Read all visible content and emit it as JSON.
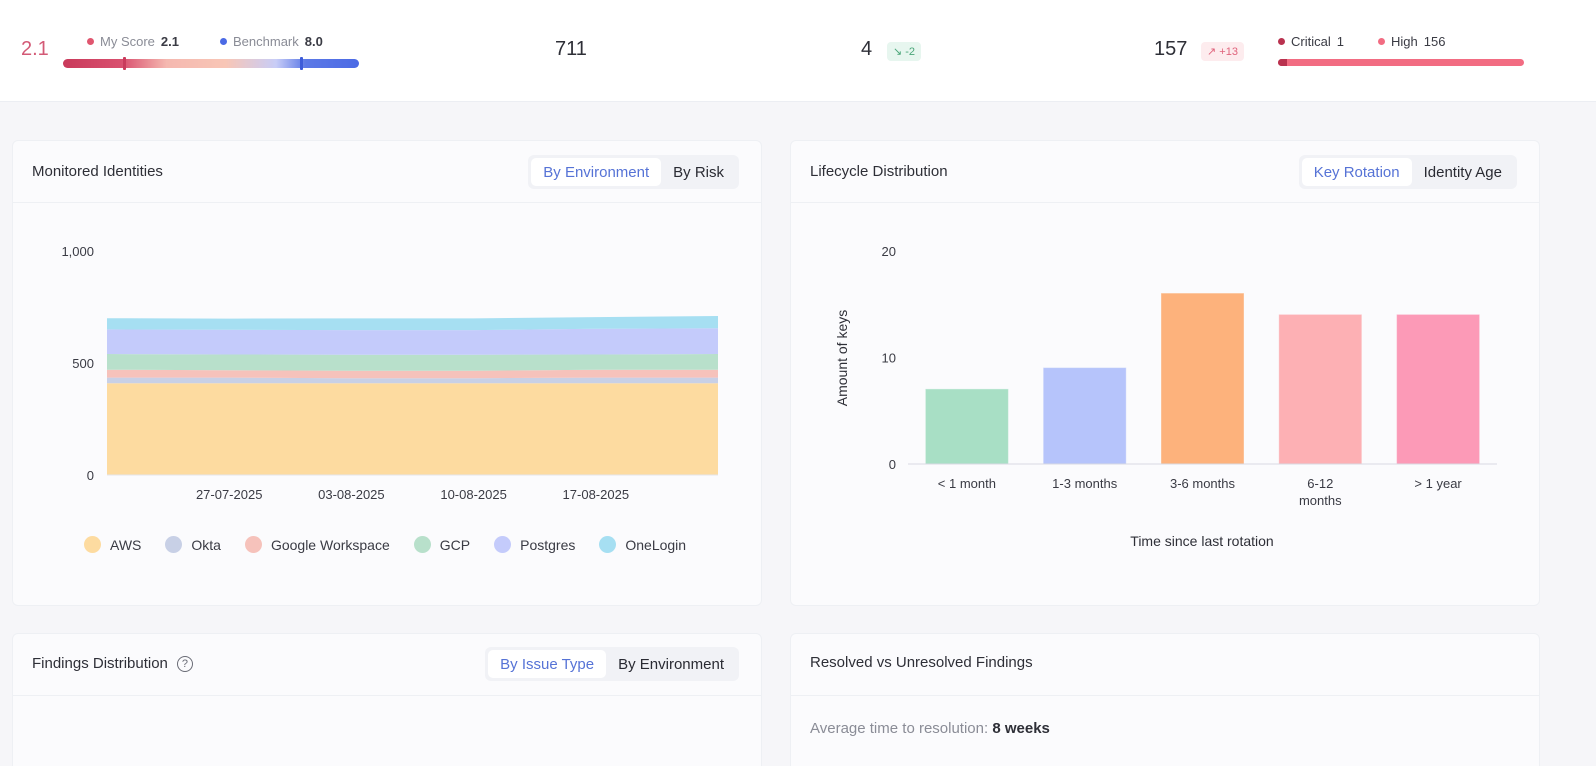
{
  "header": {
    "score": "2.1",
    "my_score_label": "My Score",
    "my_score_value": "2.1",
    "benchmark_label": "Benchmark",
    "benchmark_value": "8.0",
    "identities_count": "711",
    "metric_b_value": "4",
    "metric_b_trend": "↘ -2",
    "findings_count": "157",
    "findings_trend": "↗ +13",
    "critical_label": "Critical",
    "critical_value": "1",
    "high_label": "High",
    "high_value": "156",
    "colors": {
      "critical": "#b9324f",
      "high": "#f26c82",
      "score": "#d35a76",
      "benchmark": "#4b6ae5"
    }
  },
  "monitored": {
    "title": "Monitored Identities",
    "tab_environment": "By Environment",
    "tab_risk": "By Risk",
    "active_tab": "By Environment"
  },
  "lifecycle": {
    "title": "Lifecycle Distribution",
    "tab_key_rotation": "Key Rotation",
    "tab_identity_age": "Identity Age",
    "active_tab": "Key Rotation"
  },
  "findings": {
    "title": "Findings Distribution",
    "help_icon": "question-circle-icon",
    "tab_issue_type": "By Issue Type",
    "tab_environment": "By Environment",
    "active_tab": "By Issue Type"
  },
  "resolved": {
    "title": "Resolved vs Unresolved Findings",
    "avg_label": "Average time to resolution:",
    "avg_value": "8 weeks"
  },
  "chart_data": [
    {
      "type": "area",
      "stacked": true,
      "x": [
        "20-07-2025",
        "27-07-2025",
        "03-08-2025",
        "10-08-2025",
        "17-08-2025",
        "21-08-2025"
      ],
      "x_tick_labels": [
        "27-07-2025",
        "03-08-2025",
        "10-08-2025",
        "17-08-2025"
      ],
      "ylim": [
        0,
        1000
      ],
      "y_ticks": [
        "0",
        "500",
        "1,000"
      ],
      "grid": false,
      "legend_position": "bottom",
      "series": [
        {
          "name": "AWS",
          "color": "#fddba0",
          "values": [
            410,
            410,
            410,
            410,
            410,
            410
          ]
        },
        {
          "name": "Okta",
          "color": "#c8d0e6",
          "values": [
            25,
            25,
            22,
            22,
            25,
            25
          ]
        },
        {
          "name": "Google Workspace",
          "color": "#f6c2bb",
          "values": [
            35,
            33,
            33,
            33,
            35,
            35
          ]
        },
        {
          "name": "GCP",
          "color": "#b8e0cb",
          "values": [
            70,
            70,
            72,
            72,
            68,
            70
          ]
        },
        {
          "name": "Postgres",
          "color": "#c4cbfb",
          "values": [
            110,
            110,
            110,
            110,
            115,
            115
          ]
        },
        {
          "name": "OneLogin",
          "color": "#a6dff2",
          "values": [
            50,
            50,
            52,
            52,
            52,
            55
          ]
        }
      ]
    },
    {
      "type": "bar",
      "categories": [
        "< 1 month",
        "1-3 months",
        "3-6 months",
        "6-12 months",
        "> 1 year"
      ],
      "category_labels": [
        [
          "< 1 month"
        ],
        [
          "1-3 months"
        ],
        [
          "3-6 months"
        ],
        [
          "6-12",
          "months"
        ],
        [
          "> 1 year"
        ]
      ],
      "values": [
        7,
        9,
        16,
        14,
        14
      ],
      "colors": [
        "#a8dfc5",
        "#b6c4fb",
        "#fdb27c",
        "#fdb0b4",
        "#fc9ab7"
      ],
      "xlabel": "Time since last rotation",
      "ylabel": "Amount of keys",
      "ylim": [
        0,
        20
      ],
      "y_ticks": [
        "0",
        "10",
        "20"
      ],
      "grid": false
    }
  ]
}
